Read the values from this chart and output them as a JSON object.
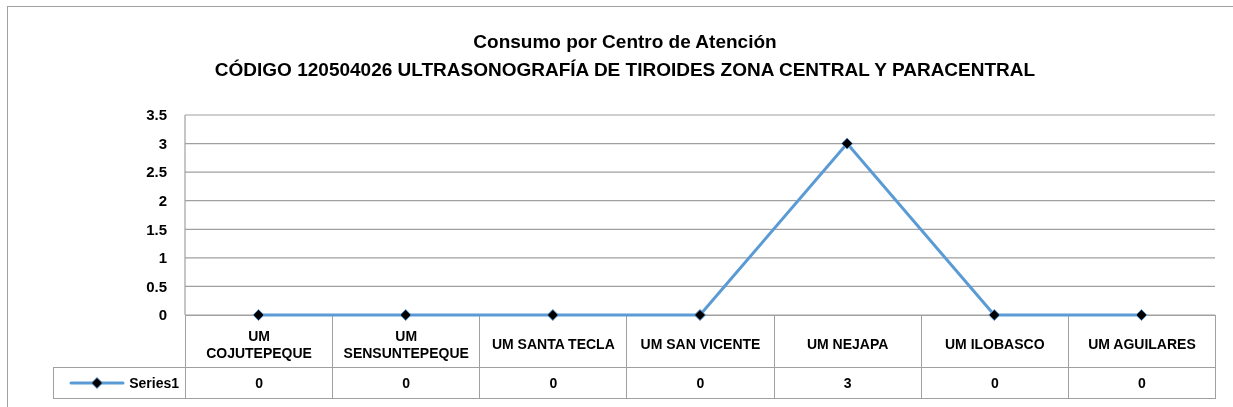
{
  "chart_data": {
    "type": "line",
    "title": "Consumo por Centro de Atención",
    "subtitle": "CÓDIGO 120504026 ULTRASONOGRAFÍA DE TIROIDES ZONA CENTRAL Y PARACENTRAL",
    "categories": [
      "UM COJUTEPEQUE",
      "UM SENSUNTEPEQUE",
      "UM SANTA TECLA",
      "UM SAN VICENTE",
      "UM NEJAPA",
      "UM ILOBASCO",
      "UM AGUILARES"
    ],
    "series": [
      {
        "name": "Series1",
        "color": "#5b9bd5",
        "values": [
          0,
          0,
          0,
          0,
          3,
          0,
          0
        ]
      }
    ],
    "ylim": [
      0,
      3.5
    ],
    "yticks": [
      0,
      0.5,
      1,
      1.5,
      2,
      2.5,
      3,
      3.5
    ],
    "grid": "y",
    "legend": "bottom left",
    "marker": "diamond",
    "data_labels": true
  }
}
